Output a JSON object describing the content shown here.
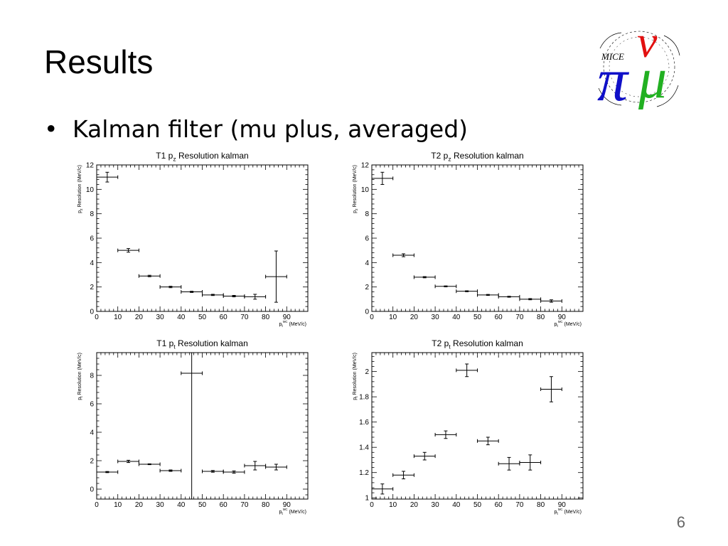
{
  "slide": {
    "title": "Results",
    "bullet": "Kalman filter (mu plus, averaged)",
    "page_number": "6",
    "logo_text": "MICE"
  },
  "colors": {
    "pi": "#1010c8",
    "nu": "#e21010",
    "mu": "#22b022",
    "axis": "#000000"
  },
  "chart_data": [
    {
      "type": "scatter",
      "title": "T1 p_z Resolution kalman",
      "xlabel": "p_t^MC (MeV/c)",
      "ylabel": "p_z Resolution (MeV/c)",
      "xlim": [
        0,
        100
      ],
      "ylim": [
        0,
        12
      ],
      "xticks": [
        0,
        10,
        20,
        30,
        40,
        50,
        60,
        70,
        80,
        90
      ],
      "yticks": [
        0,
        2,
        4,
        6,
        8,
        10,
        12
      ],
      "x": [
        5,
        15,
        25,
        35,
        45,
        55,
        65,
        75,
        85
      ],
      "y": [
        11.0,
        5.0,
        2.9,
        2.0,
        1.6,
        1.35,
        1.25,
        1.2,
        2.85
      ],
      "xerr": [
        5,
        5,
        5,
        5,
        5,
        5,
        5,
        5,
        5
      ],
      "yerr": [
        0.4,
        0.15,
        0.06,
        0.06,
        0.05,
        0.05,
        0.06,
        0.2,
        2.1
      ]
    },
    {
      "type": "scatter",
      "title": "T2 p_z Resolution kalman",
      "xlabel": "p_t^MC (MeV/c)",
      "ylabel": "p_z Resolution (MeV/c)",
      "xlim": [
        0,
        100
      ],
      "ylim": [
        0,
        12
      ],
      "xticks": [
        0,
        10,
        20,
        30,
        40,
        50,
        60,
        70,
        80,
        90
      ],
      "yticks": [
        0,
        2,
        4,
        6,
        8,
        10,
        12
      ],
      "x": [
        5,
        15,
        25,
        35,
        45,
        55,
        65,
        75,
        85
      ],
      "y": [
        10.9,
        4.6,
        2.8,
        2.05,
        1.65,
        1.35,
        1.2,
        1.0,
        0.85
      ],
      "xerr": [
        5,
        5,
        5,
        5,
        5,
        5,
        5,
        5,
        5
      ],
      "yerr": [
        0.5,
        0.12,
        0.05,
        0.04,
        0.04,
        0.04,
        0.04,
        0.05,
        0.1
      ]
    },
    {
      "type": "scatter",
      "title": "T1 p_t Resolution kalman",
      "xlabel": "p_t^MC (MeV/c)",
      "ylabel": "p_t Resolution (MeV/c)",
      "xlim": [
        0,
        100
      ],
      "ylim": [
        -0.7,
        9.6
      ],
      "xticks": [
        0,
        10,
        20,
        30,
        40,
        50,
        60,
        70,
        80,
        90
      ],
      "yticks": [
        0,
        2,
        4,
        6,
        8
      ],
      "x": [
        5,
        15,
        25,
        35,
        45,
        55,
        65,
        75,
        85
      ],
      "y": [
        1.2,
        1.95,
        1.75,
        1.3,
        8.15,
        1.25,
        1.2,
        1.65,
        1.55
      ],
      "xerr": [
        5,
        5,
        5,
        5,
        5,
        5,
        5,
        5,
        5
      ],
      "yerr": [
        0.04,
        0.08,
        0.03,
        0.05,
        9.0,
        0.06,
        0.08,
        0.3,
        0.2
      ]
    },
    {
      "type": "scatter",
      "title": "T2 p_t Resolution kalman",
      "xlabel": "p_t^MC (MeV/c)",
      "ylabel": "p_t Resolution (MeV/c)",
      "xlim": [
        0,
        100
      ],
      "ylim": [
        0.99,
        2.15
      ],
      "xticks": [
        0,
        10,
        20,
        30,
        40,
        50,
        60,
        70,
        80,
        90
      ],
      "yticks": [
        1,
        1.2,
        1.4,
        1.6,
        1.8,
        2
      ],
      "x": [
        5,
        15,
        25,
        35,
        45,
        55,
        65,
        75,
        85
      ],
      "y": [
        1.07,
        1.18,
        1.33,
        1.5,
        2.01,
        1.45,
        1.27,
        1.28,
        1.86
      ],
      "xerr": [
        5,
        5,
        5,
        5,
        5,
        5,
        5,
        5,
        5
      ],
      "yerr": [
        0.04,
        0.03,
        0.03,
        0.03,
        0.05,
        0.03,
        0.05,
        0.06,
        0.1
      ]
    }
  ]
}
